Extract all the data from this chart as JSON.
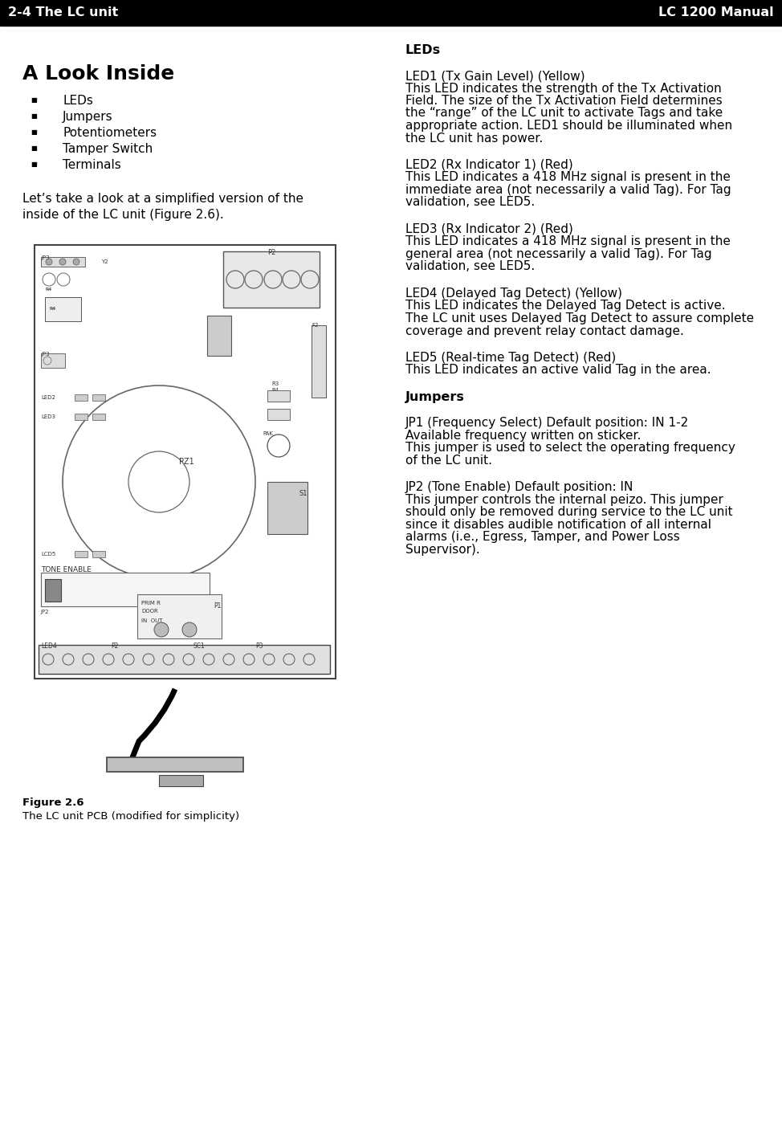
{
  "header_left": "2-4 The LC unit",
  "header_right": "LC 1200 Manual",
  "title": "A Look Inside",
  "bullet_items": [
    "LEDs",
    "Jumpers",
    "Potentiometers",
    "Tamper Switch",
    "Terminals"
  ],
  "intro_text": "Let’s take a look at a simplified version of the inside of the LC unit (Figure 2.6).",
  "figure_caption_bold": "Figure 2.6",
  "figure_caption_normal": "The LC unit PCB (modified for simplicity)",
  "right_col_heading": "LEDs",
  "led_entries": [
    {
      "heading": "LED1 (Tx Gain Level) (Yellow)",
      "body": "This LED indicates the strength of the Tx Activation Field. The size of the Tx Activation Field determines the “range” of the LC unit to activate Tags and take appropriate action. LED1 should be illuminated when the LC unit has power."
    },
    {
      "heading": "LED2 (Rx Indicator 1) (Red)",
      "body": "This LED indicates a 418 MHz signal is present in the immediate area (not necessarily a valid Tag). For Tag validation, see LED5."
    },
    {
      "heading": "LED3 (Rx Indicator 2) (Red)",
      "body": "This LED indicates a 418 MHz signal is present in the general area (not necessarily a valid Tag). For Tag validation, see LED5."
    },
    {
      "heading": "LED4 (Delayed Tag Detect) (Yellow)",
      "body": "This LED indicates the Delayed Tag Detect is active. The LC unit uses Delayed Tag Detect to assure complete coverage and prevent relay contact damage."
    },
    {
      "heading": "LED5 (Real-time Tag Detect) (Red)",
      "body": "This LED indicates an active valid Tag in the area."
    }
  ],
  "jumpers_heading": "Jumpers",
  "jumper_entries": [
    {
      "heading": "JP1 (Frequency Select) Default position: IN 1-2",
      "body": "Available frequency written on sticker.\nThis jumper is used to select the operating frequency of the LC unit."
    },
    {
      "heading": "JP2 (Tone Enable) Default position: IN",
      "body": "This jumper controls the internal peizo. This jumper should only be removed during service to the LC unit since it disables audible notification of all internal alarms (i.e., Egress, Tamper, and Power Loss Supervisor)."
    }
  ],
  "bg_color": "#ffffff",
  "header_bg": "#000000",
  "header_fg": "#ffffff",
  "body_font_size": 11.0,
  "heading_font_size": 11.0,
  "section_heading_font_size": 11.5,
  "title_font_size": 18,
  "header_font_size": 11.5
}
